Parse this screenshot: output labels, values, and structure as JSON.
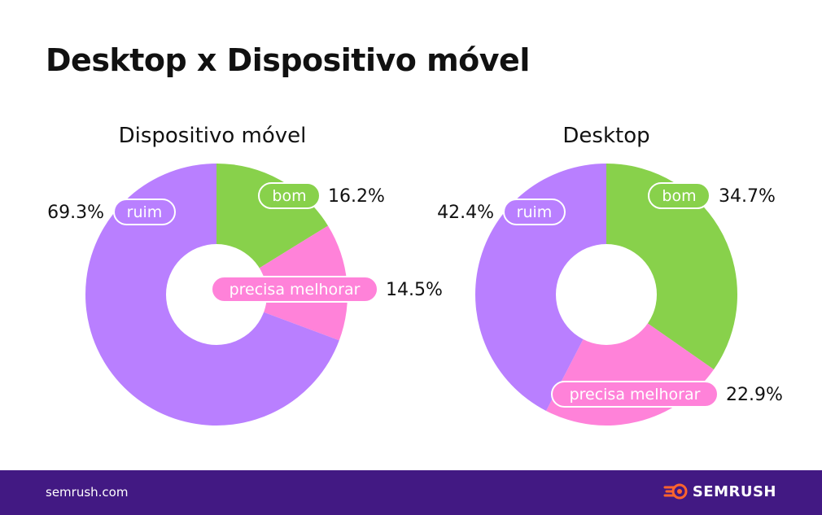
{
  "title": "Desktop x Dispositivo móvel",
  "colors": {
    "bom": "#88d14b",
    "precisa_melhorar": "#ff82d9",
    "ruim": "#b97fff",
    "footer_bg": "#421983",
    "brand_accent": "#ff642d"
  },
  "chart_data": [
    {
      "type": "pie",
      "title": "Dispositivo móvel",
      "categories": [
        "bom",
        "precisa melhorar",
        "ruim"
      ],
      "values": [
        16.2,
        14.5,
        69.3
      ],
      "labels": [
        "16.2%",
        "14.5%",
        "69.3%"
      ]
    },
    {
      "type": "pie",
      "title": "Desktop",
      "categories": [
        "bom",
        "precisa melhorar",
        "ruim"
      ],
      "values": [
        34.7,
        22.9,
        42.4
      ],
      "labels": [
        "34.7%",
        "22.9%",
        "42.4%"
      ]
    }
  ],
  "footer": {
    "url": "semrush.com",
    "brand": "SEMRUSH",
    "brand_icon": "semrush-fire-icon"
  }
}
